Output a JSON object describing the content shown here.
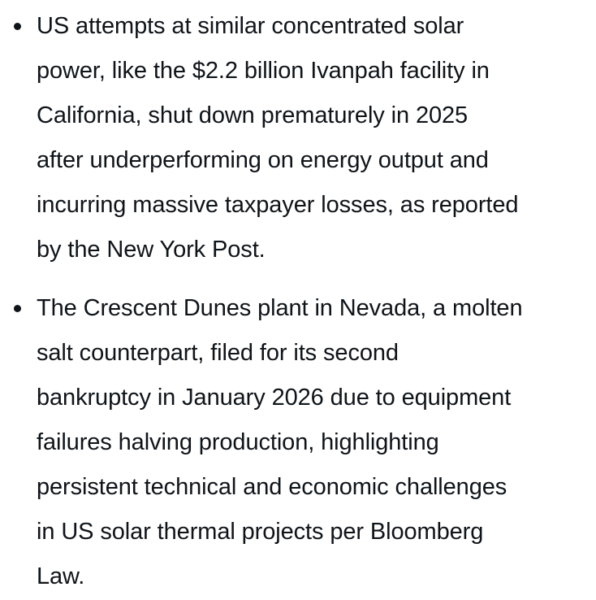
{
  "bullets": [
    {
      "lines": [
        "US attempts at similar concentrated solar",
        "power, like the $2.2 billion Ivanpah facility in",
        "California, shut down prematurely in 2025",
        "after underperforming on energy output and",
        "incurring massive taxpayer losses, as reported",
        "by the New York Post."
      ]
    },
    {
      "lines": [
        "The Crescent Dunes plant in Nevada, a molten",
        "salt counterpart, filed for its second",
        "bankruptcy in January 2026 due to equipment",
        "failures halving production, highlighting",
        "persistent technical and economic challenges",
        "in US solar thermal projects per Bloomberg",
        "Law."
      ]
    }
  ]
}
